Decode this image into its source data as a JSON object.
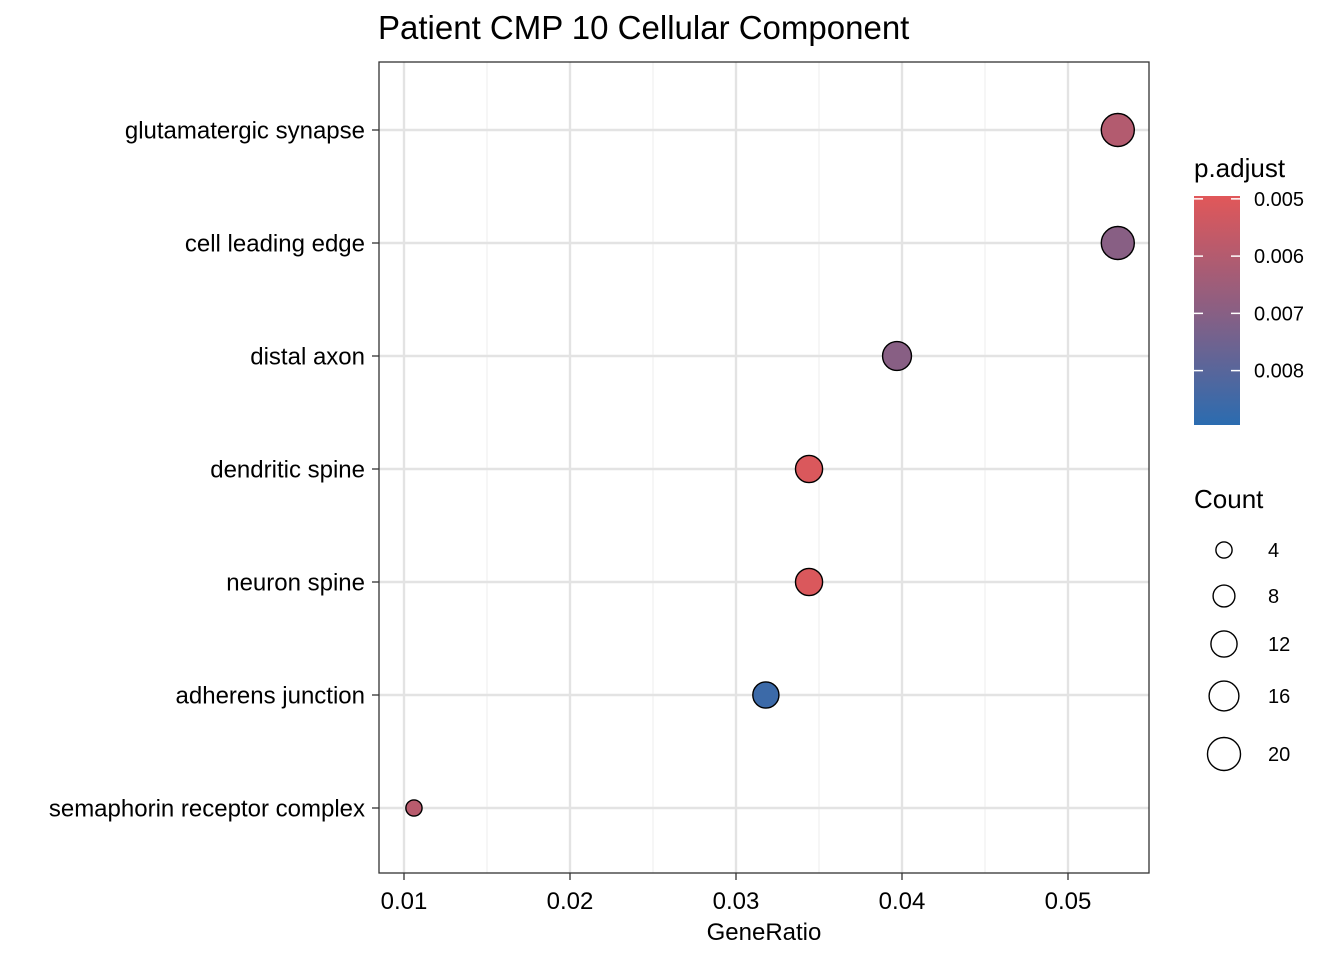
{
  "chart_data": {
    "type": "scatter",
    "title": "Patient CMP 10 Cellular Component",
    "xlabel": "GeneRatio",
    "ylabel": "",
    "xlim": [
      0.0085,
      0.055
    ],
    "x_ticks": [
      "0.01",
      "0.02",
      "0.03",
      "0.04",
      "0.05"
    ],
    "x_tick_values": [
      0.01,
      0.02,
      0.03,
      0.04,
      0.05
    ],
    "grid": true,
    "categories": [
      "glutamatergic synapse",
      "cell leading edge",
      "distal axon",
      "dendritic spine",
      "neuron spine",
      "adherens junction",
      "semaphorin receptor complex"
    ],
    "points": [
      {
        "term": "glutamatergic synapse",
        "gene_ratio": 0.053,
        "count": 20,
        "p_adjust": 0.006
      },
      {
        "term": "cell leading edge",
        "gene_ratio": 0.053,
        "count": 20,
        "p_adjust": 0.007
      },
      {
        "term": "distal axon",
        "gene_ratio": 0.0397,
        "count": 15,
        "p_adjust": 0.007
      },
      {
        "term": "dendritic spine",
        "gene_ratio": 0.0344,
        "count": 13,
        "p_adjust": 0.0051
      },
      {
        "term": "neuron spine",
        "gene_ratio": 0.0344,
        "count": 13,
        "p_adjust": 0.0051
      },
      {
        "term": "adherens junction",
        "gene_ratio": 0.0318,
        "count": 12,
        "p_adjust": 0.0086
      },
      {
        "term": "semaphorin receptor complex",
        "gene_ratio": 0.0106,
        "count": 4,
        "p_adjust": 0.0059
      }
    ],
    "color_legend": {
      "title": "p.adjust",
      "range": [
        0.00495,
        0.00895
      ],
      "ticks": [
        "0.005",
        "0.006",
        "0.007",
        "0.008"
      ],
      "tick_values": [
        0.005,
        0.006,
        0.007,
        0.008
      ],
      "low_color": "#e15759",
      "mid_color": "#8a5f83",
      "high_color": "#2b6cb0"
    },
    "size_legend": {
      "title": "Count",
      "labels": [
        "4",
        "8",
        "12",
        "16",
        "20"
      ],
      "values": [
        4,
        8,
        12,
        16,
        20
      ]
    }
  }
}
